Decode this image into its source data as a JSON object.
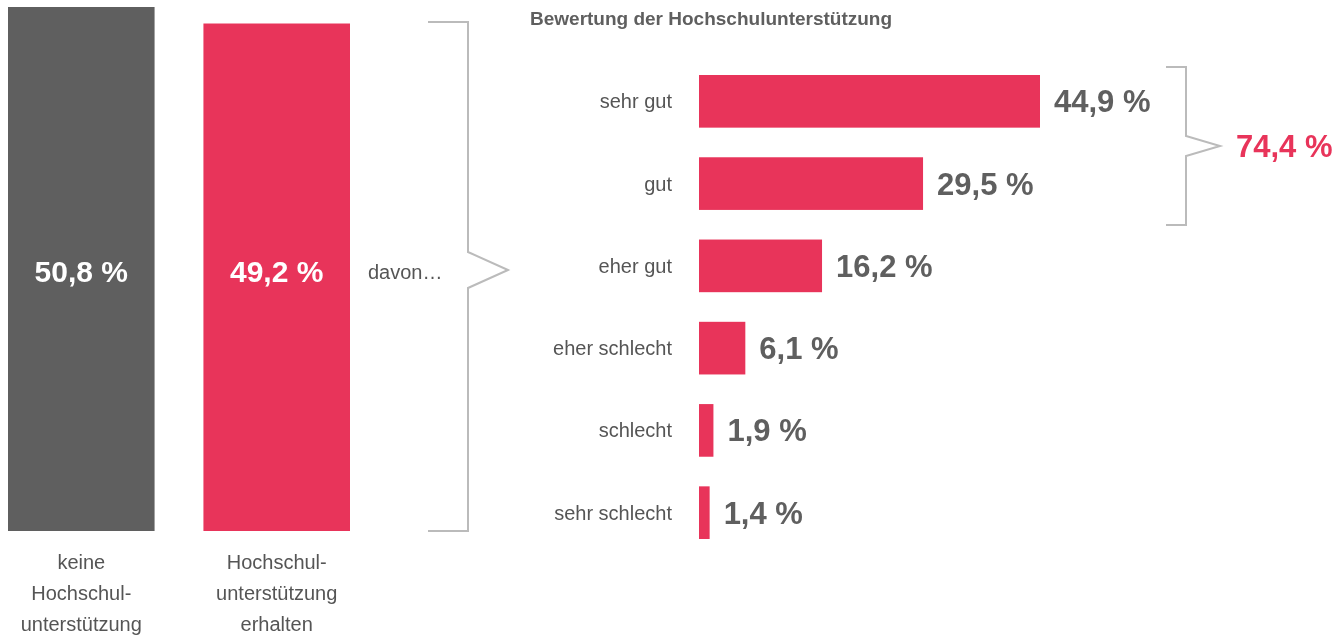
{
  "chart_data": [
    {
      "type": "bar",
      "categories": [
        "keine Hochschul-unterstützung",
        "Hochschul-unterstützung erhalten"
      ],
      "values": [
        50.8,
        49.2
      ],
      "colors": [
        "#5f5f5f",
        "#e8345a"
      ],
      "value_labels": [
        "50,8 %",
        "49,2 %"
      ],
      "annotations": [
        "davon…"
      ]
    },
    {
      "type": "bar",
      "orientation": "horizontal",
      "title": "Bewertung der Hochschulunterstützung",
      "categories": [
        "sehr gut",
        "gut",
        "eher gut",
        "eher schlecht",
        "schlecht",
        "sehr schlecht"
      ],
      "values": [
        44.9,
        29.5,
        16.2,
        6.1,
        1.9,
        1.4
      ],
      "color": "#e8345a",
      "value_labels": [
        "44,9 %",
        "29,5 %",
        "16,2 %",
        "6,1 %",
        "1,9 %",
        "1,4 %"
      ],
      "annotations": [
        "74,4 %"
      ]
    }
  ]
}
